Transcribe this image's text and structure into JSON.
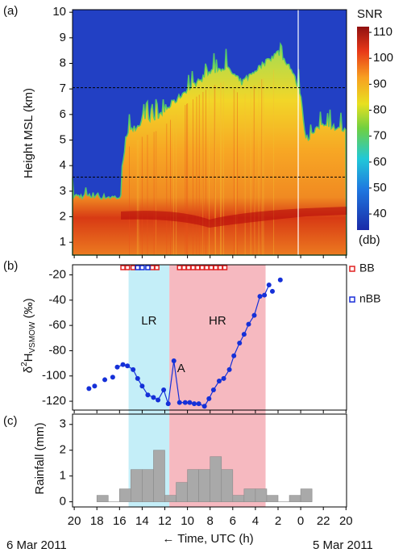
{
  "chart_data": [
    {
      "type": "heatmap",
      "label": "(a)",
      "ylabel": "Height MSL (km)",
      "ylim": [
        0.5,
        10.1
      ],
      "yticks": [
        1,
        2,
        3,
        4,
        5,
        6,
        7,
        8,
        9,
        10
      ],
      "xlim": [
        20.15,
        -4.05
      ],
      "reference_lines": [
        7.05,
        3.55
      ],
      "colorbar": {
        "title": "SNR",
        "unit": "(db)",
        "lim": [
          33.8,
          112.2
        ],
        "ticks": [
          40,
          50,
          60,
          70,
          80,
          90,
          100,
          110
        ]
      }
    },
    {
      "type": "line",
      "label": "(b)",
      "ylabel_parts": [
        "δ",
        "2",
        "H",
        "VSMOW",
        " (‰)"
      ],
      "ylim": [
        -127,
        -12
      ],
      "yticks": [
        -20,
        -40,
        -60,
        -80,
        -100,
        -120
      ],
      "xlim": [
        20.15,
        -4.05
      ],
      "regions": [
        {
          "name": "LR",
          "color": "#c4eef8",
          "x": [
            15.2,
            11.6
          ]
        },
        {
          "name": "HR",
          "color": "#f6b9c0",
          "x": [
            11.6,
            3.1
          ]
        }
      ],
      "annotation": {
        "text": "A",
        "x": 11.2,
        "y": -88
      },
      "markers": [
        {
          "name": "BB",
          "color": "#e02020",
          "x": [
            15.7,
            15.3,
            14.8,
            13.1,
            12.7,
            10.7,
            10.3,
            9.9,
            9.5,
            9.1,
            8.7,
            8.3,
            7.9,
            7.5,
            7.1,
            6.7
          ]
        },
        {
          "name": "nBB",
          "color": "#1a2fd8",
          "x": [
            14.4,
            14.0,
            13.5
          ]
        }
      ],
      "series": [
        {
          "color": "#1530d8",
          "line": false,
          "x": [
            18.7,
            18.2,
            17.3,
            16.6
          ],
          "values": [
            -110,
            -108,
            -103,
            -101
          ]
        },
        {
          "color": "#1530d8",
          "line": true,
          "x": [
            16.2,
            15.7,
            15.3,
            14.8,
            14.4,
            14.0,
            13.5,
            13.0,
            12.6,
            12.1,
            11.7,
            11.2,
            10.7,
            10.2,
            9.8,
            9.4,
            9.0,
            8.5,
            8.1,
            7.7,
            7.2,
            6.8,
            6.3,
            5.9,
            5.4,
            5.0,
            4.6,
            4.1,
            3.6,
            3.2,
            2.8
          ],
          "values": [
            -93,
            -91,
            -92,
            -95,
            -102,
            -108,
            -115,
            -117,
            -119,
            -111,
            -122,
            -88,
            -121,
            -121,
            -121,
            -122,
            -122,
            -124,
            -118,
            -111,
            -104,
            -102,
            -95,
            -84,
            -74,
            -67,
            -59,
            -52,
            -37,
            -36,
            -28
          ]
        },
        {
          "color": "#1530d8",
          "line": false,
          "x": [
            2.5,
            1.8
          ],
          "values": [
            -33,
            -24
          ]
        }
      ]
    },
    {
      "type": "histogram",
      "label": "(c)",
      "ylabel": "Rainfall (mm)",
      "xlabel": "← Time, UTC (h)",
      "date_labels": [
        "6 Mar 2011",
        "5 Mar 2011"
      ],
      "color": "#a9a9a9",
      "ylim": [
        -0.2,
        3.4
      ],
      "yticks": [
        0,
        1,
        2,
        3
      ],
      "xlim": [
        20.15,
        -4.05
      ],
      "xticks": [
        20,
        18,
        16,
        14,
        12,
        10,
        8,
        6,
        4,
        2,
        0,
        {
          "value": -2,
          "label": "22"
        },
        {
          "value": -4,
          "label": "20"
        }
      ],
      "bins": [
        18,
        17,
        16,
        15,
        14,
        13,
        12,
        11,
        10,
        9,
        8,
        7,
        6,
        5,
        4,
        3,
        2,
        1,
        0,
        -1
      ],
      "values": [
        0.25,
        0,
        0.5,
        1.25,
        1.25,
        2.0,
        0.25,
        0.75,
        1.25,
        1.25,
        1.75,
        1.25,
        0.25,
        0.5,
        0.5,
        0.25,
        0,
        0.25,
        0.5
      ]
    }
  ]
}
